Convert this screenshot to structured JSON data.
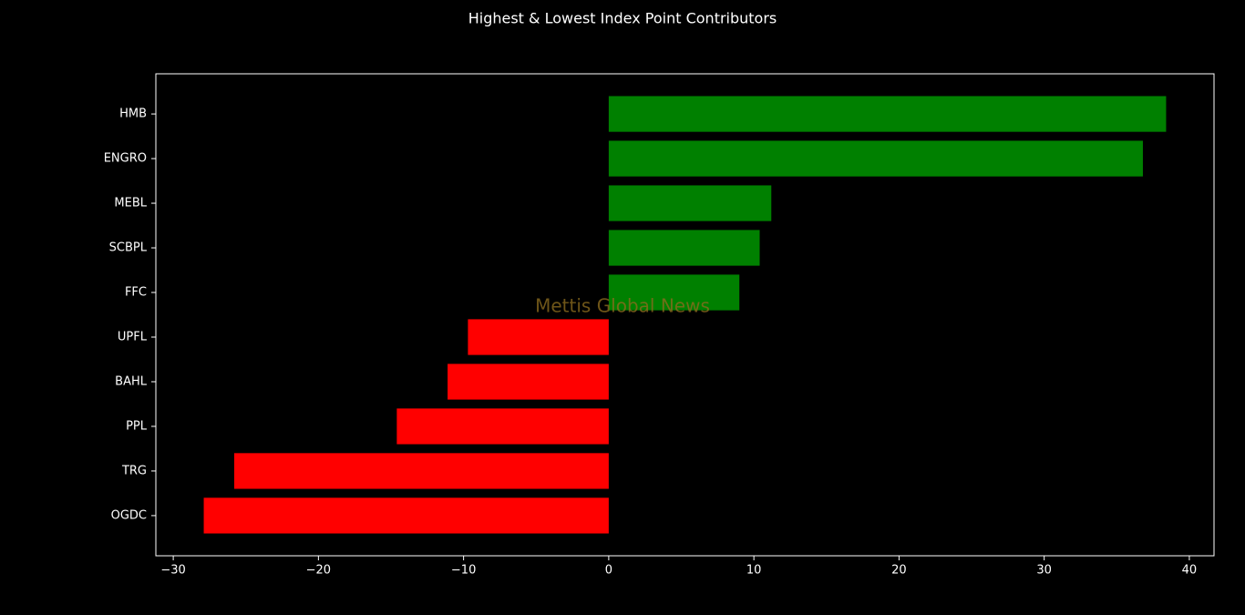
{
  "chart_data": {
    "type": "barh",
    "title": "Highest & Lowest Index Point Contributors",
    "watermark": "Mettis Global News",
    "categories": [
      "HMB",
      "ENGRO",
      "MEBL",
      "SCBPL",
      "FFC",
      "UPFL",
      "BAHL",
      "PPL",
      "TRG",
      "OGDC"
    ],
    "values": [
      38.4,
      36.8,
      11.2,
      10.4,
      9.0,
      -9.7,
      -11.1,
      -14.6,
      -25.8,
      -27.9
    ],
    "colors": [
      "#008000",
      "#008000",
      "#008000",
      "#008000",
      "#008000",
      "#ff0000",
      "#ff0000",
      "#ff0000",
      "#ff0000",
      "#ff0000"
    ],
    "xlim": [
      -31.2,
      41.7
    ],
    "xticks": [
      {
        "value": -30,
        "label": "−30"
      },
      {
        "value": -20,
        "label": "−20"
      },
      {
        "value": -10,
        "label": "−10"
      },
      0,
      10,
      20,
      30,
      40
    ],
    "grid": false
  }
}
